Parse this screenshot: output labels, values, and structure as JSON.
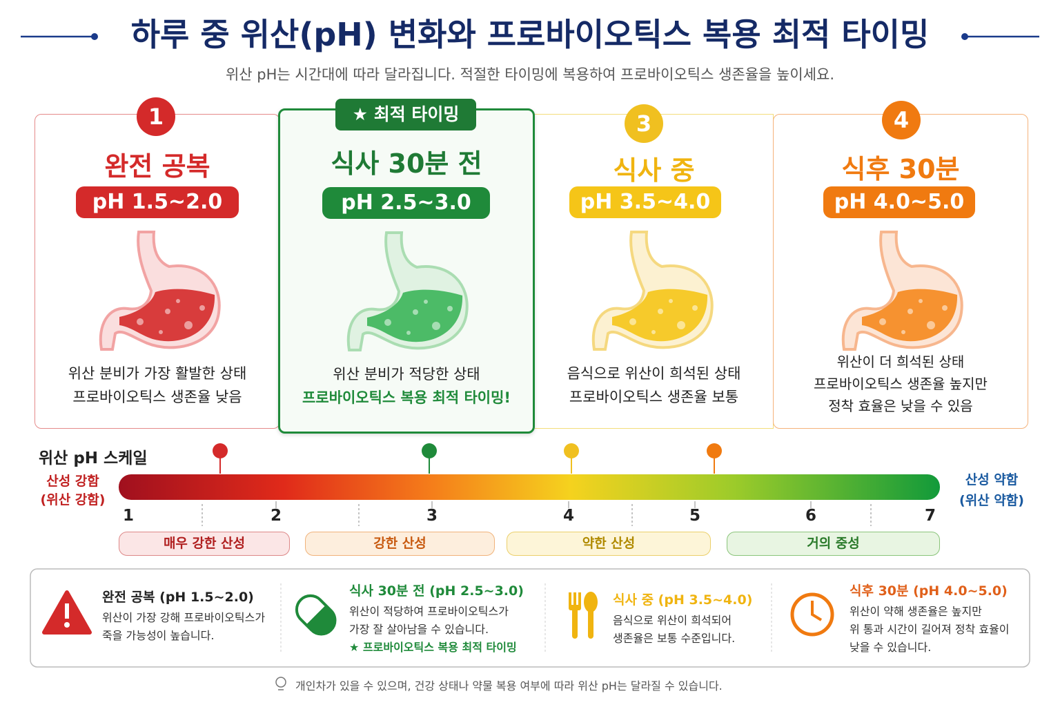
{
  "header": {
    "title": "하루 중 위산(pH) 변화와 프로바이오틱스 복용 최적 타이밍",
    "subtitle": "위산 pH는 시간대에 따라 달라집니다. 적절한 타이밍에 복용하여 프로바이오틱스 생존율을 높이세요."
  },
  "badge": "★ 최적 타이밍",
  "stages": [
    {
      "number": "1",
      "name": "완전 공복",
      "ph": "pH 1.5~2.0",
      "lines": [
        "위산 분비가 가장 활발한 상태",
        "프로바이오틱스 생존율 낮음"
      ]
    },
    {
      "name": "식사 30분 전",
      "ph": "pH 2.5~3.0",
      "lines": [
        "위산 분비가 적당한 상태",
        "프로바이오틱스 복용 최적 타이밍!"
      ]
    },
    {
      "number": "3",
      "name": "식사 중",
      "ph": "pH 3.5~4.0",
      "lines": [
        "음식으로 위산이 희석된 상태",
        "프로바이오틱스 생존율 보통"
      ]
    },
    {
      "number": "4",
      "name": "식후 30분",
      "ph": "pH 4.0~5.0",
      "lines": [
        "위산이 더 희석된 상태",
        "프로바이오틱스 생존율 높지만",
        "정착 효율은 낮을 수 있음"
      ]
    }
  ],
  "scale": {
    "title": "위산 pH 스케일",
    "left": [
      "산성 강함",
      "(위산 강함)"
    ],
    "right": [
      "산성 약함",
      "(위산 약함)"
    ],
    "ticks": [
      "1",
      "2",
      "3",
      "4",
      "5",
      "6",
      "7"
    ],
    "bands": [
      "매우 강한 산성",
      "강한 산성",
      "약한 산성",
      "거의 중성"
    ]
  },
  "summary": [
    {
      "title": "완전 공복 (pH 1.5~2.0)",
      "lines": [
        "위산이 가장 강해 프로바이오틱스가",
        "죽을 가능성이 높습니다."
      ]
    },
    {
      "title": "식사 30분 전 (pH 2.5~3.0)",
      "lines": [
        "위산이 적당하여 프로바이오틱스가",
        "가장 잘 살아남을 수 있습니다."
      ],
      "note": "★ 프로바이오틱스 복용 최적 타이밍"
    },
    {
      "title": "식사 중 (pH 3.5~4.0)",
      "lines": [
        "음식으로 위산이 희석되어",
        "생존율은 보통 수준입니다."
      ]
    },
    {
      "title": "식후 30분 (pH 4.0~5.0)",
      "lines": [
        "위산이 약해 생존율은 높지만",
        "위 통과 시간이 길어져 정착 효율이",
        "낮을 수 있습니다."
      ]
    }
  ],
  "footer": "개인차가 있을 수 있으며, 건강 상태나 약물 복용 여부에 따라 위산 pH는 달라질 수 있습니다."
}
